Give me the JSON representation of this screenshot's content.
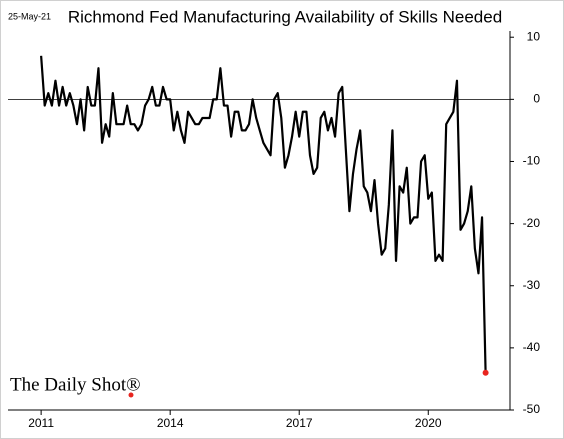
{
  "chart_data": {
    "type": "line",
    "title": "Richmond Fed Manufacturing Availability of Skills Needed",
    "date_label": "25-May-21",
    "source": "The Daily Shot®",
    "x": [
      2011,
      2011.083,
      2011.167,
      2011.25,
      2011.333,
      2011.417,
      2011.5,
      2011.583,
      2011.667,
      2011.75,
      2011.833,
      2011.917,
      2012,
      2012.083,
      2012.167,
      2012.25,
      2012.333,
      2012.417,
      2012.5,
      2012.583,
      2012.667,
      2012.75,
      2012.833,
      2012.917,
      2013,
      2013.083,
      2013.167,
      2013.25,
      2013.333,
      2013.417,
      2013.5,
      2013.583,
      2013.667,
      2013.75,
      2013.833,
      2013.917,
      2014,
      2014.083,
      2014.167,
      2014.25,
      2014.333,
      2014.417,
      2014.5,
      2014.583,
      2014.667,
      2014.75,
      2014.833,
      2014.917,
      2015,
      2015.083,
      2015.167,
      2015.25,
      2015.333,
      2015.417,
      2015.5,
      2015.583,
      2015.667,
      2015.75,
      2015.833,
      2015.917,
      2016,
      2016.083,
      2016.167,
      2016.25,
      2016.333,
      2016.417,
      2016.5,
      2016.583,
      2016.667,
      2016.75,
      2016.833,
      2016.917,
      2017,
      2017.083,
      2017.167,
      2017.25,
      2017.333,
      2017.417,
      2017.5,
      2017.583,
      2017.667,
      2017.75,
      2017.833,
      2017.917,
      2018,
      2018.083,
      2018.167,
      2018.25,
      2018.333,
      2018.417,
      2018.5,
      2018.583,
      2018.667,
      2018.75,
      2018.833,
      2018.917,
      2019,
      2019.083,
      2019.167,
      2019.25,
      2019.333,
      2019.417,
      2019.5,
      2019.583,
      2019.667,
      2019.75,
      2019.833,
      2019.917,
      2020,
      2020.083,
      2020.167,
      2020.25,
      2020.333,
      2020.417,
      2020.5,
      2020.583,
      2020.667,
      2020.75,
      2020.833,
      2020.917,
      2021,
      2021.083,
      2021.167,
      2021.25,
      2021.333
    ],
    "series": [
      {
        "name": "Availability of Skills Needed",
        "color": "#000000",
        "values": [
          7,
          -1,
          1,
          -1,
          3,
          -1,
          2,
          -1,
          1,
          -1,
          -4,
          0,
          -5,
          2,
          -1,
          -1,
          5,
          -7,
          -4,
          -6,
          1,
          -4,
          -4,
          -4,
          -1,
          -4,
          -4,
          -5,
          -4,
          -1,
          0,
          2,
          -1,
          -1,
          2,
          0,
          0,
          -5,
          -2,
          -5,
          -7,
          -2,
          -3,
          -4,
          -4,
          -3,
          -3,
          -3,
          0,
          0,
          5,
          -1,
          -1,
          -6,
          -2,
          -2,
          -5,
          -5,
          -4,
          0,
          -3,
          -5,
          -7,
          -8,
          -9,
          0,
          1,
          -3,
          -11,
          -9,
          -6,
          -2,
          -6,
          -2,
          -2,
          -9,
          -12,
          -11,
          -3,
          -2,
          -5,
          -3,
          -6,
          1,
          2,
          -8,
          -18,
          -12,
          -8,
          -5,
          -14,
          -15,
          -18,
          -13,
          -20,
          -25,
          -24,
          -17,
          -5,
          -26,
          -14,
          -15,
          -11,
          -20,
          -19,
          -19,
          -10,
          -9,
          -16,
          -15,
          -26,
          -25,
          -26,
          -4,
          -3,
          -2,
          3,
          -21,
          -20,
          -18,
          -14,
          -24,
          -28,
          -19,
          -44
        ]
      }
    ],
    "xlim": [
      2010.23,
      2021.9
    ],
    "xticks": [
      2011,
      2014,
      2017,
      2020
    ],
    "ylim": [
      -50,
      11
    ],
    "yticks": [
      10,
      0,
      -10,
      -20,
      -30,
      -40,
      -50
    ],
    "last_point_color": "#e8251f"
  }
}
